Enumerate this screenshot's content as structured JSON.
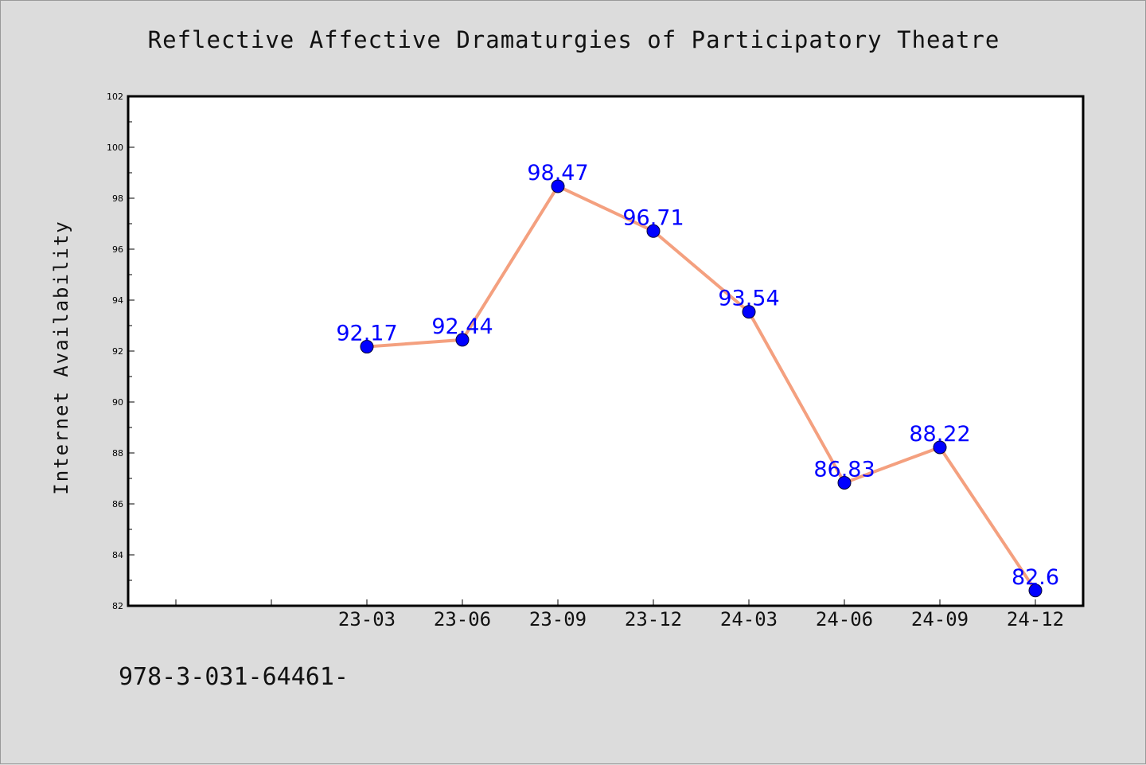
{
  "title": "Reflective Affective Dramaturgies of Participatory Theatre",
  "footer_text": "978-3-031-64461-",
  "colors": {
    "background": "#dcdcdc",
    "plot_area": "#ffffff",
    "line": "#f4a07f",
    "marker": "#0000ff",
    "label": "#0000ff"
  },
  "chart_data": {
    "type": "line",
    "title": "Reflective Affective Dramaturgies of Participatory Theatre",
    "xlabel": "",
    "ylabel": "Internet Availability",
    "ylim": [
      82,
      102
    ],
    "yticks": [
      82,
      84,
      86,
      88,
      90,
      92,
      94,
      96,
      98,
      100,
      102
    ],
    "x_slots": 10,
    "categories": [
      "23-03",
      "23-06",
      "23-09",
      "23-12",
      "24-03",
      "24-06",
      "24-09",
      "24-12"
    ],
    "category_slot_offset": 2,
    "series": [
      {
        "values": [
          92.17,
          92.44,
          98.47,
          96.71,
          93.54,
          86.83,
          88.22,
          82.6
        ],
        "labels": [
          "92.17",
          "92.44",
          "98.47",
          "96.71",
          "93.54",
          "86.83",
          "88.22",
          "82.6"
        ]
      }
    ],
    "grid": false,
    "legend": "none"
  }
}
